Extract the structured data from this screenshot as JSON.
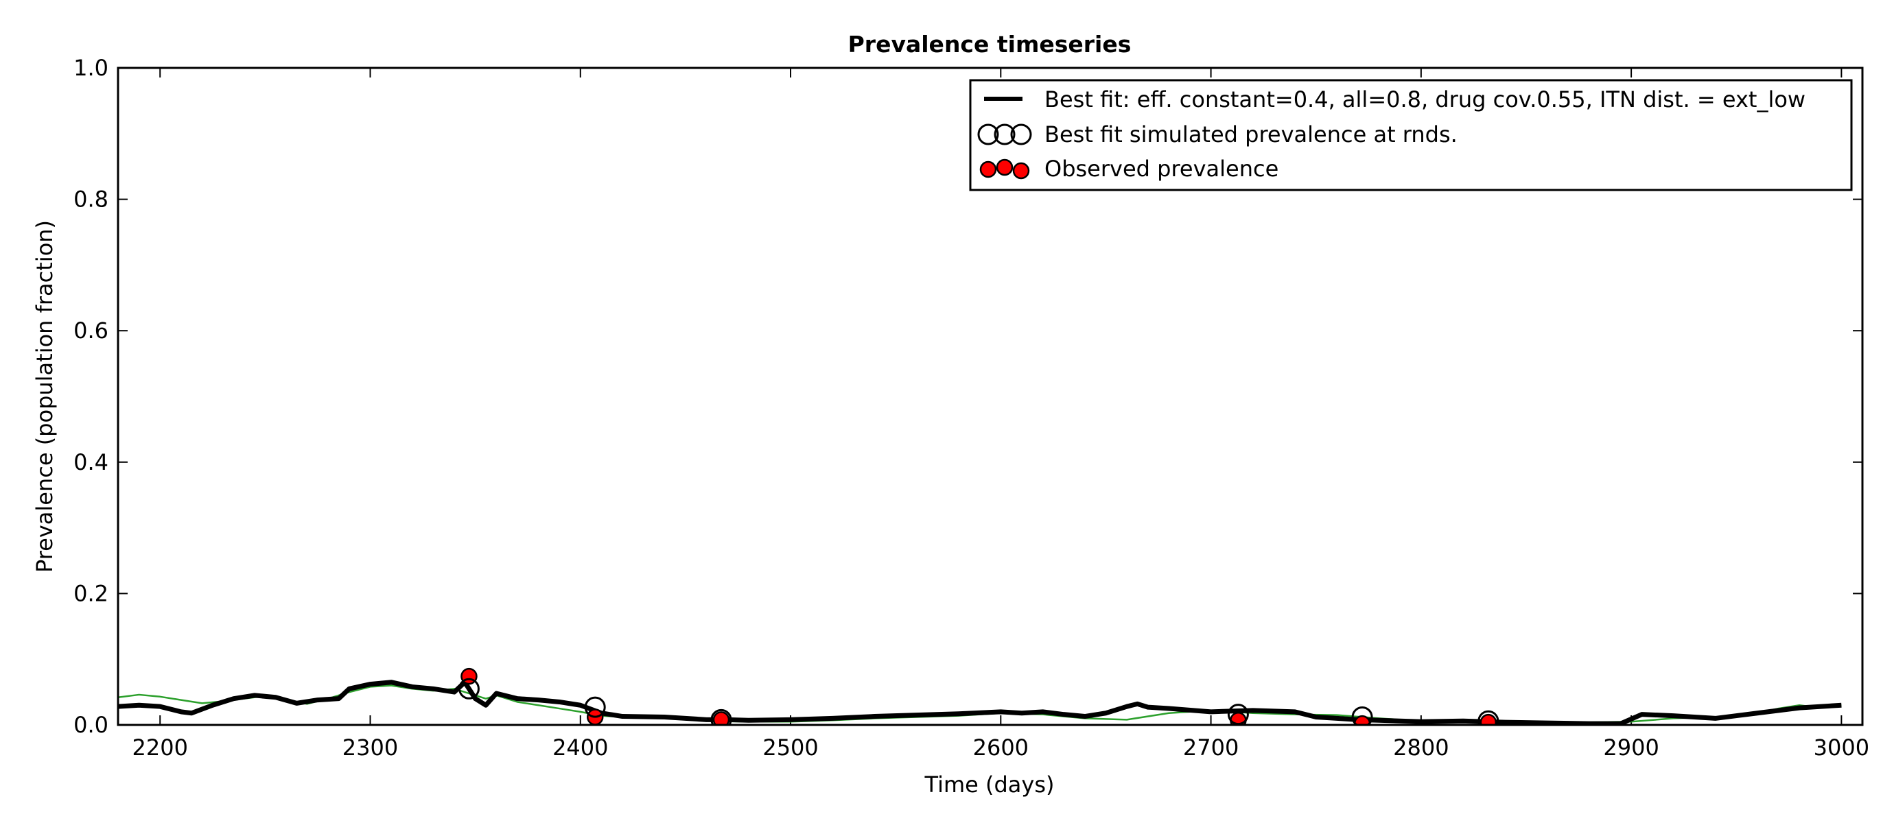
{
  "chart_data": {
    "type": "line",
    "title": "Prevalence timeseries",
    "xlabel": "Time (days)",
    "ylabel": "Prevalence (population fraction)",
    "xlim": [
      2180,
      3010
    ],
    "ylim": [
      0.0,
      1.0
    ],
    "x_ticks": [
      2200,
      2300,
      2400,
      2500,
      2600,
      2700,
      2800,
      2900,
      3000
    ],
    "y_ticks": [
      0.0,
      0.2,
      0.4,
      0.6,
      0.8,
      1.0
    ],
    "y_tick_labels": [
      "0.0",
      "0.2",
      "0.4",
      "0.6",
      "0.8",
      "1.0"
    ],
    "grid": false,
    "legend_position": "top-right",
    "legend": [
      "Best fit: eff. constant=0.4, all=0.8, drug cov.0.55, ITN dist. = ext_low",
      "Best fit simulated prevalence at rnds.",
      "Observed prevalence"
    ],
    "colors": {
      "best_fit": "#000000",
      "other_run": "#2ca02c",
      "observed_fill": "#ff0000",
      "simulated_fill": "none",
      "axis": "#000000"
    },
    "series": [
      {
        "kind": "line",
        "role": "best_fit",
        "legend_index": 0,
        "x": [
          2180,
          2190,
          2200,
          2210,
          2215,
          2225,
          2235,
          2245,
          2255,
          2265,
          2275,
          2285,
          2290,
          2300,
          2310,
          2320,
          2330,
          2340,
          2345,
          2350,
          2355,
          2360,
          2370,
          2380,
          2390,
          2400,
          2410,
          2420,
          2440,
          2460,
          2470,
          2480,
          2500,
          2520,
          2540,
          2560,
          2580,
          2600,
          2610,
          2620,
          2630,
          2640,
          2650,
          2660,
          2665,
          2670,
          2680,
          2700,
          2720,
          2740,
          2750,
          2760,
          2770,
          2780,
          2800,
          2820,
          2840,
          2860,
          2880,
          2895,
          2905,
          2920,
          2940,
          2960,
          2980,
          3000
        ],
        "y": [
          0.028,
          0.03,
          0.028,
          0.02,
          0.018,
          0.03,
          0.04,
          0.045,
          0.042,
          0.033,
          0.038,
          0.04,
          0.055,
          0.062,
          0.065,
          0.058,
          0.055,
          0.05,
          0.065,
          0.04,
          0.03,
          0.048,
          0.04,
          0.038,
          0.035,
          0.03,
          0.018,
          0.013,
          0.012,
          0.008,
          0.008,
          0.007,
          0.008,
          0.01,
          0.013,
          0.015,
          0.017,
          0.02,
          0.018,
          0.02,
          0.016,
          0.013,
          0.018,
          0.028,
          0.032,
          0.027,
          0.025,
          0.02,
          0.022,
          0.02,
          0.012,
          0.01,
          0.008,
          0.007,
          0.005,
          0.006,
          0.004,
          0.003,
          0.002,
          0.002,
          0.016,
          0.014,
          0.01,
          0.018,
          0.026,
          0.03
        ]
      },
      {
        "kind": "line",
        "role": "other_run",
        "x": [
          2180,
          2190,
          2200,
          2210,
          2220,
          2230,
          2240,
          2250,
          2260,
          2270,
          2280,
          2290,
          2300,
          2310,
          2320,
          2330,
          2340,
          2350,
          2355,
          2360,
          2370,
          2380,
          2390,
          2400,
          2410,
          2420,
          2440,
          2460,
          2480,
          2500,
          2520,
          2540,
          2560,
          2580,
          2600,
          2620,
          2640,
          2660,
          2680,
          2700,
          2720,
          2740,
          2760,
          2780,
          2800,
          2820,
          2840,
          2860,
          2880,
          2900,
          2920,
          2940,
          2960,
          2970,
          2980,
          2990,
          3000
        ],
        "y": [
          0.042,
          0.046,
          0.043,
          0.038,
          0.033,
          0.036,
          0.04,
          0.044,
          0.038,
          0.032,
          0.04,
          0.05,
          0.058,
          0.06,
          0.055,
          0.052,
          0.055,
          0.045,
          0.04,
          0.045,
          0.035,
          0.03,
          0.025,
          0.02,
          0.014,
          0.012,
          0.01,
          0.006,
          0.005,
          0.005,
          0.007,
          0.01,
          0.012,
          0.014,
          0.018,
          0.016,
          0.01,
          0.008,
          0.018,
          0.022,
          0.018,
          0.016,
          0.015,
          0.01,
          0.006,
          0.005,
          0.005,
          0.004,
          0.004,
          0.005,
          0.01,
          0.012,
          0.018,
          0.025,
          0.03,
          0.026,
          0.03
        ]
      },
      {
        "kind": "scatter",
        "role": "simulated_rounds",
        "legend_index": 1,
        "x": [
          2347,
          2407,
          2467,
          2713,
          2772,
          2832
        ],
        "y": [
          0.055,
          0.027,
          0.008,
          0.016,
          0.012,
          0.006
        ]
      },
      {
        "kind": "scatter",
        "role": "observed",
        "legend_index": 2,
        "x": [
          2347,
          2407,
          2467,
          2713,
          2772,
          2832
        ],
        "y": [
          0.074,
          0.012,
          0.008,
          0.007,
          0.002,
          0.004
        ]
      }
    ]
  }
}
